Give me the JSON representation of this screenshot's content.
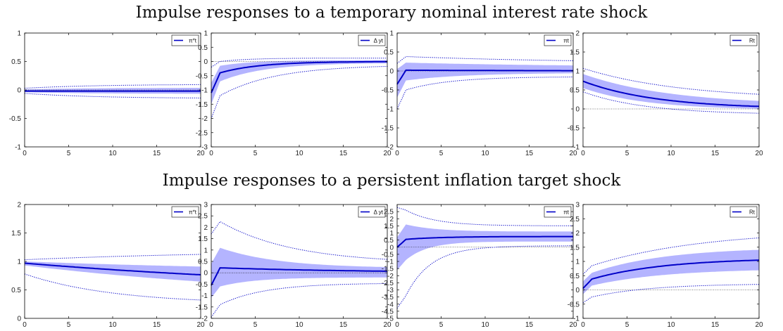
{
  "titles": [
    "Impulse responses to a temporary nominal interest rate shock",
    "Impulse responses to a persistent inflation target shock"
  ],
  "colors": {
    "line": "#0000c8",
    "band": "#b4b4ff",
    "zero_line": "#000000",
    "axis": "#000000"
  },
  "chart_data": [
    {
      "type": "line",
      "row": 0,
      "col": 0,
      "legend": "π*t",
      "x": [
        0,
        20
      ],
      "xticks": [
        0,
        5,
        10,
        15,
        20
      ],
      "ylim": [
        -1,
        1
      ],
      "yticks": [
        -1,
        -0.5,
        0,
        0.5,
        1
      ],
      "yticklabels": [
        "-1",
        "-0.5",
        "0",
        "0.5",
        "1"
      ],
      "series": [
        {
          "role": "median",
          "y0": -0.02,
          "yinf": -0.02,
          "decay": 0
        },
        {
          "role": "band_upper",
          "y0": 0.01,
          "yinf": 0.04,
          "decay": 0.12
        },
        {
          "role": "band_lower",
          "y0": -0.04,
          "yinf": -0.07,
          "decay": 0.12
        },
        {
          "role": "outer_upper",
          "y0": 0.03,
          "yinf": 0.1,
          "decay": 0.12
        },
        {
          "role": "outer_lower",
          "y0": -0.06,
          "yinf": -0.15,
          "decay": 0.12
        }
      ]
    },
    {
      "type": "line",
      "row": 0,
      "col": 1,
      "legend": "Δ yt",
      "x": [
        0,
        20
      ],
      "xticks": [
        0,
        5,
        10,
        15,
        20
      ],
      "ylim": [
        -3,
        1
      ],
      "yticks": [
        -3,
        -2.5,
        -2,
        -1.5,
        -1,
        -0.5,
        0,
        0.5,
        1
      ],
      "yticklabels": [
        "-3",
        "-2.5",
        "-2",
        "-1.5",
        "-1",
        "-0.5",
        "0",
        "0.5",
        "1"
      ],
      "series": [
        {
          "role": "median",
          "y0": -1.1,
          "y1": -0.4,
          "yinf": 0.0,
          "decay": 0.22
        },
        {
          "role": "band_upper",
          "y0": -0.75,
          "y1": -0.15,
          "yinf": 0.05,
          "decay": 0.25
        },
        {
          "role": "band_lower",
          "y0": -1.5,
          "y1": -0.7,
          "yinf": -0.05,
          "decay": 0.2
        },
        {
          "role": "outer_upper",
          "y0": -0.2,
          "y1": 0.0,
          "yinf": 0.12,
          "decay": 0.3
        },
        {
          "role": "outer_lower",
          "y0": -2.0,
          "y1": -1.2,
          "yinf": -0.12,
          "decay": 0.16
        }
      ]
    },
    {
      "type": "line",
      "row": 0,
      "col": 2,
      "legend": "πt",
      "x": [
        0,
        20
      ],
      "xticks": [
        0,
        5,
        10,
        15,
        20
      ],
      "ylim": [
        -2,
        1
      ],
      "yticks": [
        -2,
        -1.5,
        -1,
        -0.5,
        0,
        0.5,
        1
      ],
      "yticklabels": [
        "-2",
        "-1.5",
        "-1",
        "-0.5",
        "0",
        "0.5",
        "1"
      ],
      "series": [
        {
          "role": "median",
          "y0": -0.35,
          "y1": 0.02,
          "yinf": 0.0,
          "decay": 0.05
        },
        {
          "role": "band_upper",
          "y0": 0.05,
          "y1": 0.22,
          "yinf": 0.1,
          "decay": 0.05
        },
        {
          "role": "band_lower",
          "y0": -0.7,
          "y1": -0.25,
          "yinf": -0.05,
          "decay": 0.15
        },
        {
          "role": "outer_upper",
          "y0": 0.2,
          "y1": 0.38,
          "yinf": 0.2,
          "decay": 0.05
        },
        {
          "role": "outer_lower",
          "y0": -1.0,
          "y1": -0.5,
          "yinf": -0.15,
          "decay": 0.2
        }
      ]
    },
    {
      "type": "line",
      "row": 0,
      "col": 3,
      "legend": "Rt",
      "x": [
        0,
        20
      ],
      "xticks": [
        0,
        5,
        10,
        15,
        20
      ],
      "ylim": [
        -1,
        2
      ],
      "yticks": [
        -1,
        -0.5,
        0,
        0.5,
        1,
        1.5,
        2
      ],
      "yticklabels": [
        "-1",
        "-0.5",
        "0",
        "0.5",
        "1",
        "1.5",
        "2"
      ],
      "series": [
        {
          "role": "median",
          "y0": 0.73,
          "yinf": 0.0,
          "decay": 0.12
        },
        {
          "role": "band_upper",
          "y0": 0.92,
          "yinf": 0.1,
          "decay": 0.1
        },
        {
          "role": "band_lower",
          "y0": 0.55,
          "yinf": -0.03,
          "decay": 0.14
        },
        {
          "role": "outer_upper",
          "y0": 1.07,
          "yinf": 0.25,
          "decay": 0.09
        },
        {
          "role": "outer_lower",
          "y0": 0.45,
          "yinf": -0.15,
          "decay": 0.14
        }
      ]
    },
    {
      "type": "line",
      "row": 1,
      "col": 0,
      "legend": "π*t",
      "x": [
        0,
        20
      ],
      "xticks": [
        0,
        5,
        10,
        15,
        20
      ],
      "ylim": [
        0,
        2
      ],
      "yticks": [
        0,
        0.5,
        1,
        1.5,
        2
      ],
      "yticklabels": [
        "0",
        "0.5",
        "1",
        "1.5",
        "2"
      ],
      "series": [
        {
          "role": "median",
          "y0": 0.97,
          "yinf": 0.45,
          "decay": 0.025
        },
        {
          "role": "band_upper",
          "y0": 1.0,
          "yinf": 0.8,
          "decay": 0.03
        },
        {
          "role": "band_lower",
          "y0": 0.93,
          "yinf": 0.3,
          "decay": 0.03
        },
        {
          "role": "outer_upper",
          "y0": 1.03,
          "yinf": 1.2,
          "decay": 0.04
        },
        {
          "role": "outer_lower",
          "y0": 0.78,
          "yinf": 0.25,
          "decay": 0.1
        }
      ]
    },
    {
      "type": "line",
      "row": 1,
      "col": 1,
      "legend": "Δ yt",
      "x": [
        0,
        20
      ],
      "xticks": [
        0,
        5,
        10,
        15,
        20
      ],
      "ylim": [
        -2,
        3
      ],
      "yticks": [
        -2,
        -1.5,
        -1,
        -0.5,
        0,
        0.5,
        1,
        1.5,
        2,
        2.5,
        3
      ],
      "yticklabels": [
        "-2",
        "-1.5",
        "-1",
        "-0.5",
        "0",
        "0.5",
        "1",
        "1.5",
        "2",
        "2.5",
        "3"
      ],
      "series": [
        {
          "role": "median",
          "y0": -0.55,
          "y1": 0.22,
          "yinf": 0.0,
          "decay": 0.06
        },
        {
          "role": "band_upper",
          "y0": 0.4,
          "y1": 1.1,
          "yinf": 0.2,
          "decay": 0.15
        },
        {
          "role": "band_lower",
          "y0": -1.1,
          "y1": -0.6,
          "yinf": -0.2,
          "decay": 0.25
        },
        {
          "role": "outer_upper",
          "y0": 1.7,
          "y1": 2.25,
          "yinf": 0.4,
          "decay": 0.12
        },
        {
          "role": "outer_lower",
          "y0": -1.95,
          "y1": -1.4,
          "yinf": -0.45,
          "decay": 0.2
        }
      ]
    },
    {
      "type": "line",
      "row": 1,
      "col": 2,
      "legend": "πt",
      "x": [
        0,
        20
      ],
      "xticks": [
        0,
        5,
        10,
        15,
        20
      ],
      "ylim": [
        -5,
        3
      ],
      "yticks": [
        -5,
        -4.5,
        -4,
        -3.5,
        -3,
        -2.5,
        -2,
        -1.5,
        -1,
        -0.5,
        0,
        0.5,
        1,
        1.5,
        2,
        2.5
      ],
      "yticklabels": [
        "-5",
        "-4.5",
        "-4",
        "-3.5",
        "-3",
        "-2.5",
        "-2",
        "-1.5",
        "-1",
        "-0.5",
        "0",
        "0.5",
        "1",
        "1.5",
        "2",
        "2.5"
      ],
      "series": [
        {
          "role": "median",
          "y0": 0.0,
          "y1": 0.55,
          "yinf": 0.75,
          "decay": 0.25
        },
        {
          "role": "band_upper",
          "y0": 0.7,
          "y1": 1.6,
          "yinf": 1.1,
          "decay": 0.3
        },
        {
          "role": "band_lower",
          "y0": -1.6,
          "y1": -0.9,
          "yinf": 0.4,
          "decay": 0.4
        },
        {
          "role": "outer_upper",
          "y0": 2.8,
          "y1": 2.6,
          "yinf": 1.5,
          "decay": 0.3
        },
        {
          "role": "outer_lower",
          "y0": -4.3,
          "y1": -3.4,
          "yinf": 0.1,
          "decay": 0.35
        }
      ]
    },
    {
      "type": "line",
      "row": 1,
      "col": 3,
      "legend": "Rt",
      "x": [
        0,
        20
      ],
      "xticks": [
        0,
        5,
        10,
        15,
        20
      ],
      "ylim": [
        -1,
        3
      ],
      "yticks": [
        -1,
        -0.5,
        0,
        0.5,
        1,
        1.5,
        2,
        2.5,
        3
      ],
      "yticklabels": [
        "-1",
        "-0.5",
        "0",
        "0.5",
        "1",
        "1.5",
        "2",
        "2.5",
        "3"
      ],
      "series": [
        {
          "role": "median",
          "y0": 0.05,
          "y1": 0.38,
          "yinf": 1.12,
          "decay": 0.12
        },
        {
          "role": "band_upper",
          "y0": 0.3,
          "y1": 0.6,
          "yinf": 1.5,
          "decay": 0.12
        },
        {
          "role": "band_lower",
          "y0": -0.15,
          "y1": 0.15,
          "yinf": 0.75,
          "decay": 0.12
        },
        {
          "role": "outer_upper",
          "y0": 0.55,
          "y1": 0.85,
          "yinf": 2.1,
          "decay": 0.08
        },
        {
          "role": "outer_lower",
          "y0": -0.45,
          "y1": -0.25,
          "yinf": 0.22,
          "decay": 0.15
        }
      ]
    }
  ]
}
